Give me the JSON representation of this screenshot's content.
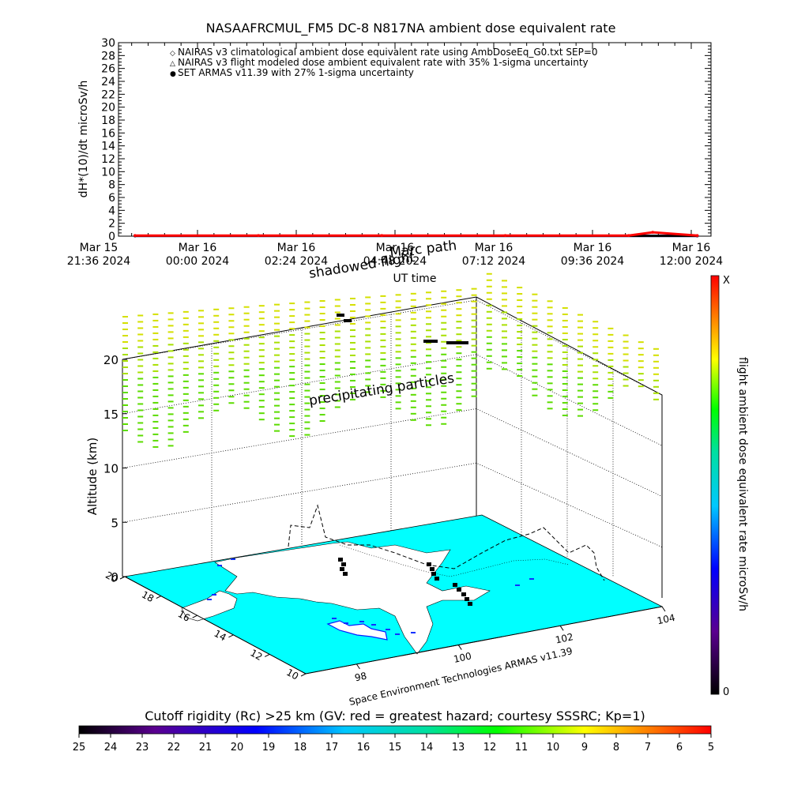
{
  "top_chart": {
    "title": "NASAAFRCMUL_FM5 DC-8   N817NA ambient dose equivalent rate",
    "ylabel": "dH*(10)/dt microSv/h",
    "xlabel": "UT time",
    "y_ticks": [
      "0",
      "2",
      "4",
      "6",
      "8",
      "10",
      "12",
      "14",
      "16",
      "18",
      "20",
      "22",
      "24",
      "26",
      "28",
      "30"
    ],
    "x_ticks": [
      {
        "line1": "Mar 15",
        "line2": "21:36 2024"
      },
      {
        "line1": "Mar 16",
        "line2": "00:00 2024"
      },
      {
        "line1": "Mar 16",
        "line2": "02:24 2024"
      },
      {
        "line1": "Mar 16",
        "line2": "04:48 2024"
      },
      {
        "line1": "Mar 16",
        "line2": "07:12 2024"
      },
      {
        "line1": "Mar 16",
        "line2": "09:36 2024"
      },
      {
        "line1": "Mar 16",
        "line2": "12:00 2024"
      }
    ],
    "legend": [
      {
        "symbol": "◇",
        "color": "#ff0000",
        "label": "NAIRAS v3 climatological ambient dose equivalent rate using AmbDoseEq_G0.txt SEP=0"
      },
      {
        "symbol": "△",
        "color": "#000000",
        "label": "NAIRAS v3 flight modeled dose ambient equivalent rate with 35% 1-sigma uncertainty"
      },
      {
        "symbol": "●",
        "color": "#0000ff",
        "label": "SET ARMAS v11.39 with 27% 1-sigma uncertainty"
      }
    ],
    "overlay_labels": {
      "path": "Marc path",
      "shadowed": "shadowed flight"
    }
  },
  "chart_data": [
    {
      "type": "line",
      "title": "NASAAFRCMUL_FM5 DC-8   N817NA ambient dose equivalent rate",
      "xlabel": "UT time",
      "ylabel": "dH*(10)/dt microSv/h",
      "ylim": [
        0,
        30
      ],
      "xlim": [
        "2024-03-15 21:36",
        "2024-03-16 12:00"
      ],
      "series": [
        {
          "name": "NAIRAS v3 climatological ambient dose equivalent rate using AmbDoseEq_G0.txt SEP=0",
          "color": "#ff0000",
          "x": [
            "2024-03-15 22:00",
            "2024-03-16 01:00",
            "2024-03-16 04:00",
            "2024-03-16 07:00",
            "2024-03-16 10:00",
            "2024-03-16 10:35",
            "2024-03-16 11:40"
          ],
          "y": [
            0.1,
            0.1,
            0.1,
            0.1,
            0.1,
            0.6,
            0.1
          ]
        },
        {
          "name": "NAIRAS v3 flight modeled dose ambient equivalent rate with 35% 1-sigma uncertainty",
          "color": "#000000",
          "x": [
            "2024-03-15 22:00",
            "2024-03-16 11:40"
          ],
          "y": [
            0.05,
            0.05
          ]
        },
        {
          "name": "SET ARMAS v11.39 with 27% 1-sigma uncertainty",
          "color": "#0000ff",
          "x": [
            "2024-03-15 22:00",
            "2024-03-16 11:40"
          ],
          "y": [
            0.05,
            0.05
          ]
        }
      ]
    },
    {
      "type": "scatter",
      "title": "",
      "zlabel": "Altitude (km)",
      "z_ticks": [
        "0",
        "5",
        "10",
        "15",
        "20"
      ],
      "x_ticks": [
        "98",
        "100",
        "102",
        "104"
      ],
      "y_ticks": [
        "10",
        "12",
        "14",
        "16",
        "18",
        "20"
      ],
      "xlim": [
        97,
        104
      ],
      "ylim": [
        10,
        20
      ],
      "zlim": [
        0,
        20
      ]
    }
  ],
  "map3d": {
    "zlabel": "Altitude (km)",
    "z_ticks": [
      "0",
      "5",
      "10",
      "15",
      "20"
    ],
    "lon_ticks": [
      "98",
      "100",
      "102",
      "104"
    ],
    "lat_ticks": [
      "10",
      "12",
      "14",
      "16",
      "18",
      "20"
    ],
    "precip_label": "precipitating particles",
    "credit": "Space Environment Technologies ARMAS v11.39",
    "sea_color": "#00ffff"
  },
  "colorbar_right": {
    "label": "flight ambient dose equivalent rate microSv/h",
    "top": "X",
    "bottom": "0"
  },
  "colorbar_bottom": {
    "title": "Cutoff rigidity (Rc) >25 km (GV: red = greatest hazard; courtesy SSSRC; Kp=1)",
    "ticks": [
      "25",
      "24",
      "23",
      "22",
      "21",
      "20",
      "19",
      "18",
      "17",
      "16",
      "15",
      "14",
      "13",
      "12",
      "11",
      "10",
      "9",
      "8",
      "7",
      "6",
      "5"
    ]
  }
}
